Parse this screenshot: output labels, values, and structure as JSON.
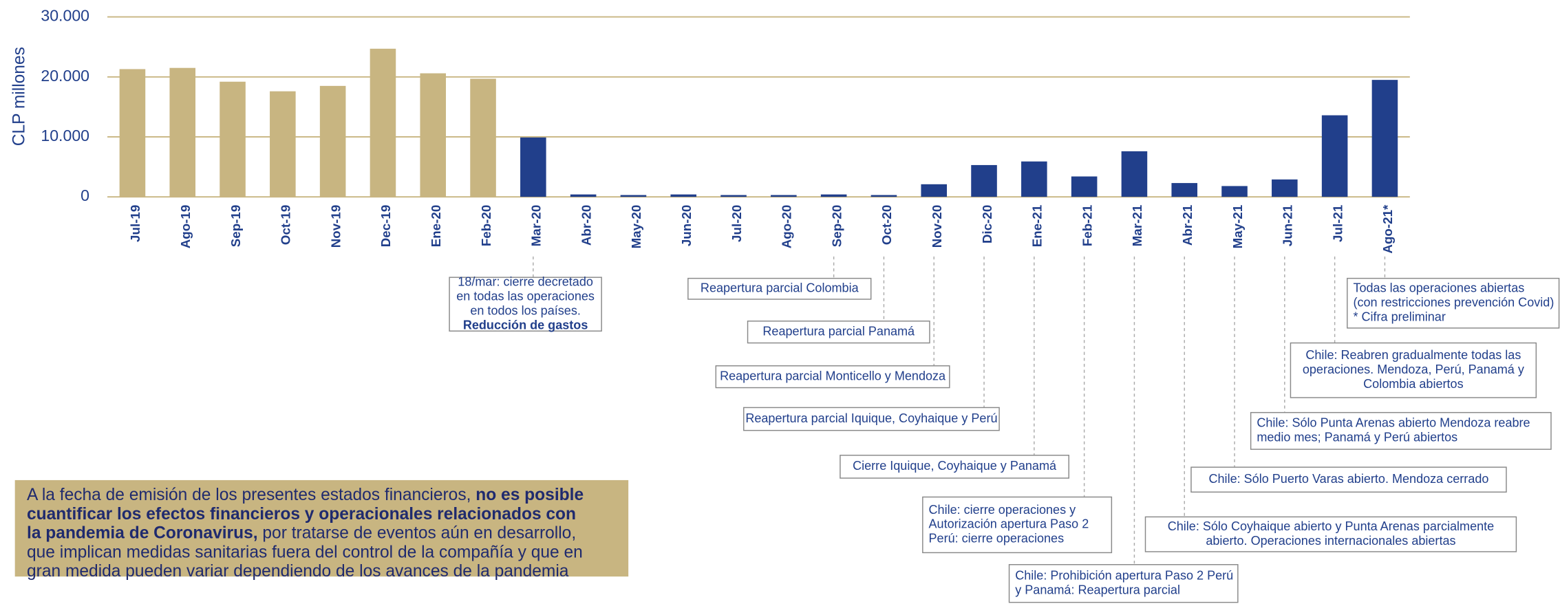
{
  "chart_data": {
    "type": "bar",
    "ylabel": "CLP millones",
    "categories": [
      "Jul-19",
      "Ago-19",
      "Sep-19",
      "Oct-19",
      "Nov-19",
      "Dec-19",
      "Ene-20",
      "Feb-20",
      "Mar-20",
      "Abr-20",
      "May-20",
      "Jun-20",
      "Jul-20",
      "Ago-20",
      "Sep-20",
      "Oct-20",
      "Nov-20",
      "Dic-20",
      "Ene-21",
      "Feb-21",
      "Mar-21",
      "Abr-21",
      "May-21",
      "Jun-21",
      "Jul-21",
      "Ago-21*"
    ],
    "values": [
      21300,
      21500,
      19200,
      17600,
      18500,
      24700,
      20600,
      19700,
      9900,
      400,
      300,
      400,
      300,
      300,
      400,
      300,
      2100,
      5300,
      5900,
      3400,
      7600,
      2300,
      1800,
      2900,
      13600,
      19500
    ],
    "colors": [
      "#c8b581",
      "#c8b581",
      "#c8b581",
      "#c8b581",
      "#c8b581",
      "#c8b581",
      "#c8b581",
      "#c8b581",
      "#213f8b",
      "#213f8b",
      "#213f8b",
      "#213f8b",
      "#213f8b",
      "#213f8b",
      "#213f8b",
      "#213f8b",
      "#213f8b",
      "#213f8b",
      "#213f8b",
      "#213f8b",
      "#213f8b",
      "#213f8b",
      "#213f8b",
      "#213f8b",
      "#213f8b",
      "#213f8b"
    ],
    "ylim": [
      0,
      30000
    ],
    "yticks": [
      0,
      {
        "value": 10000,
        "label": "10.000"
      },
      {
        "value": 20000,
        "label": "20.000"
      },
      {
        "value": 30000,
        "label": "30.000"
      }
    ],
    "grid": true
  },
  "annotations": [
    {
      "lines": [
        "18/mar: cierre decretado",
        "en todas las operaciones",
        "en todos los países.",
        "Reducción de gastos"
      ]
    },
    {
      "lines": [
        "Reapertura parcial Colombia"
      ]
    },
    {
      "lines": [
        "Reapertura parcial Panamá"
      ]
    },
    {
      "lines": [
        "Reapertura parcial Monticello y Mendoza"
      ]
    },
    {
      "lines": [
        "Reapertura parcial Iquique, Coyhaique y Perú"
      ]
    },
    {
      "lines": [
        "Cierre Iquique, Coyhaique y Panamá"
      ]
    },
    {
      "lines": [
        "Chile: cierre operaciones y",
        "Autorización apertura Paso 2",
        "Perú: cierre operaciones"
      ]
    },
    {
      "lines": [
        "Chile: Prohibición apertura Paso 2 Perú",
        "y Panamá: Reapertura parcial"
      ]
    },
    {
      "lines": [
        "Chile: Sólo Coyhaique abierto y Punta Arenas parcialmente",
        "abierto. Operaciones internacionales abiertas"
      ]
    },
    {
      "lines": [
        "Chile: Sólo Puerto Varas abierto. Mendoza cerrado"
      ]
    },
    {
      "lines": [
        "Chile: Sólo Punta Arenas abierto Mendoza reabre",
        "medio mes; Panamá y Perú abiertos"
      ]
    },
    {
      "lines": [
        "Chile: Reabren gradualmente todas las",
        "operaciones. Mendoza, Perú, Panamá y",
        "Colombia abiertos"
      ]
    },
    {
      "lines": [
        "Todas las operaciones abiertas",
        "(con restricciones prevención Covid)",
        "* Cifra preliminar"
      ]
    }
  ],
  "note": {
    "lines": [
      [
        {
          "text": "A la fecha de emisión de los presentes estados financieros, ",
          "bold": false
        },
        {
          "text": "no es posible",
          "bold": true
        }
      ],
      [
        {
          "text": "cuantificar los efectos financieros y operacionales relacionados con",
          "bold": true
        }
      ],
      [
        {
          "text": "la pandemia de Coronavirus,",
          "bold": true
        },
        {
          "text": " por tratarse de eventos aún en desarrollo,",
          "bold": false
        }
      ],
      [
        {
          "text": "que implican medidas sanitarias fuera del control de la compañía y que en",
          "bold": false
        }
      ],
      [
        {
          "text": "gran medida pueden variar dependiendo de los avances de la pandemia",
          "bold": false
        }
      ]
    ]
  }
}
